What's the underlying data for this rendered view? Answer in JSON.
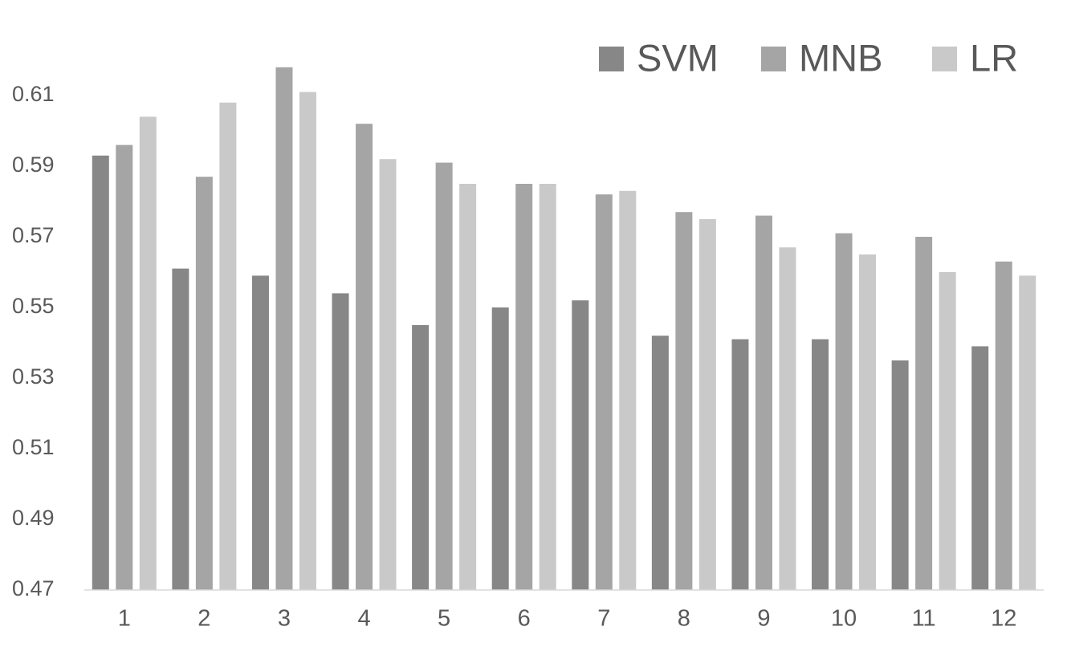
{
  "chart_data": {
    "type": "bar",
    "categories": [
      "1",
      "2",
      "3",
      "4",
      "5",
      "6",
      "7",
      "8",
      "9",
      "10",
      "11",
      "12"
    ],
    "series": [
      {
        "name": "SVM",
        "color": "#878787",
        "values": [
          0.593,
          0.561,
          0.559,
          0.554,
          0.545,
          0.55,
          0.552,
          0.542,
          0.541,
          0.541,
          0.535,
          0.539
        ]
      },
      {
        "name": "MNB",
        "color": "#a5a5a5",
        "values": [
          0.596,
          0.587,
          0.618,
          0.602,
          0.591,
          0.585,
          0.582,
          0.577,
          0.576,
          0.571,
          0.57,
          0.563
        ]
      },
      {
        "name": "LR",
        "color": "#c9c9c9",
        "values": [
          0.604,
          0.608,
          0.611,
          0.592,
          0.585,
          0.585,
          0.583,
          0.575,
          0.567,
          0.565,
          0.56,
          0.559
        ]
      }
    ],
    "ylim": [
      0.47,
      0.63
    ],
    "yticks": [
      0.47,
      0.49,
      0.51,
      0.53,
      0.55,
      0.57,
      0.59,
      0.61
    ],
    "grid": false,
    "legend": "top-right"
  }
}
